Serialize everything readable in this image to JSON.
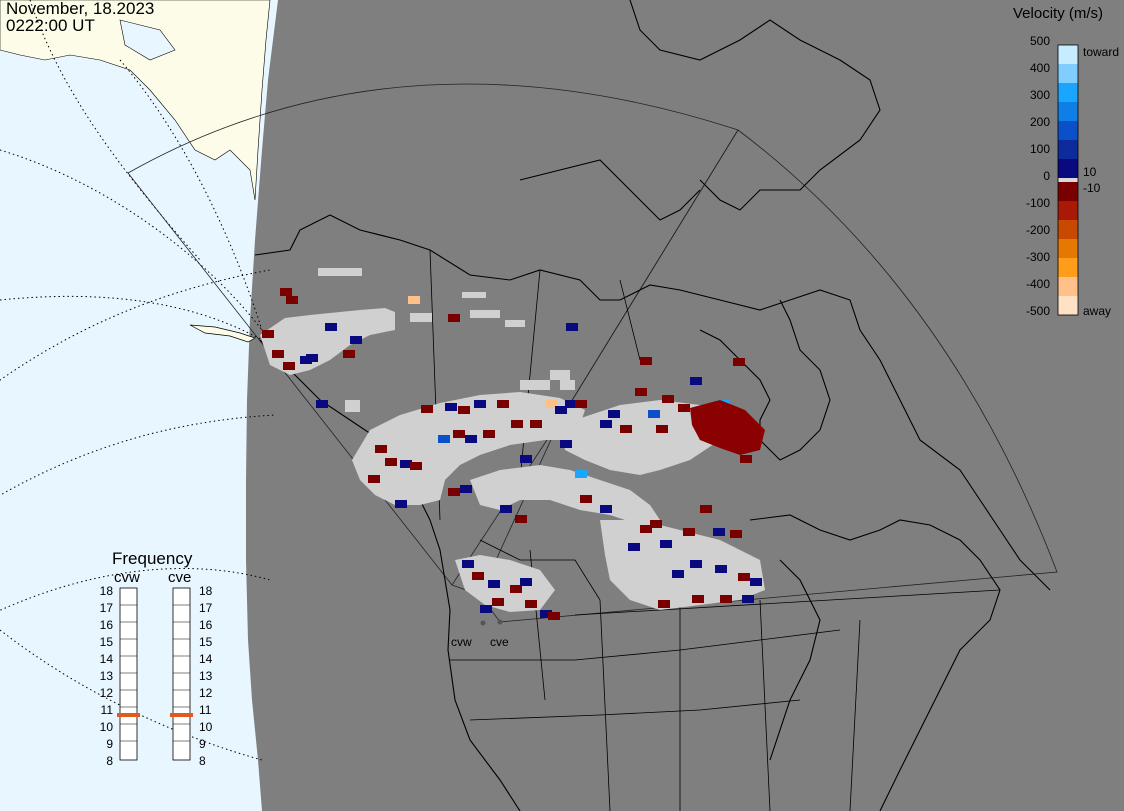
{
  "header": {
    "date": "November, 18.2023",
    "time": "0222:00 UT"
  },
  "velocity_legend": {
    "title": "Velocity (m/s)",
    "tick_labels": [
      "500",
      "400",
      "300",
      "200",
      "100",
      "0",
      "-100",
      "-200",
      "-300",
      "-400",
      "-500"
    ],
    "inner_labels": [
      "10",
      "-10"
    ],
    "toward_label": "toward",
    "away_label": "away",
    "colors_toward": [
      "#0a0a80",
      "#0b2c9a",
      "#0a50c8",
      "#0d7fe6",
      "#1aa6ff",
      "#82cdff",
      "#c8ecff"
    ],
    "colors_away": [
      "#7a0000",
      "#a81a05",
      "#c84a00",
      "#e57800",
      "#ff9d1a",
      "#ffc08a",
      "#ffe2c6"
    ],
    "zero_band_color": "#d9d9d9"
  },
  "frequency_panel": {
    "title": "Frequency",
    "radars": [
      "cvw",
      "cve"
    ],
    "scale": [
      "18",
      "17",
      "16",
      "15",
      "14",
      "13",
      "12",
      "11",
      "10",
      "9",
      "8"
    ],
    "current_mhz": [
      11,
      11
    ],
    "marker_color": "#e05a20"
  },
  "map": {
    "radar_site_labels": [
      "cvw",
      "cve"
    ],
    "colors": {
      "ocean": "#e8f6ff",
      "land_daylight": "#fcfce8",
      "night_shade": "#7f7f7f",
      "ground_scatter": "#d0d0d0",
      "coastline": "#000000"
    }
  }
}
